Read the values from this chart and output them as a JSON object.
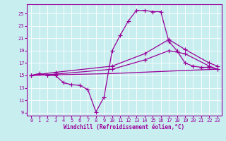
{
  "background_color": "#c8eef0",
  "line_color": "#990099",
  "xlabel": "Windchill (Refroidissement éolien,°C)",
  "xlim": [
    -0.5,
    23.5
  ],
  "ylim": [
    8.5,
    26.5
  ],
  "xticks": [
    0,
    1,
    2,
    3,
    4,
    5,
    6,
    7,
    8,
    9,
    10,
    11,
    12,
    13,
    14,
    15,
    16,
    17,
    18,
    19,
    20,
    21,
    22,
    23
  ],
  "yticks": [
    9,
    11,
    13,
    15,
    17,
    19,
    21,
    23,
    25
  ],
  "series1_x": [
    0,
    1,
    2,
    3,
    4,
    5,
    6,
    7,
    8,
    9,
    10,
    11,
    12,
    13,
    14,
    15,
    16,
    17,
    18,
    19,
    20,
    21,
    22,
    23
  ],
  "series1_y": [
    15.0,
    15.3,
    15.0,
    15.0,
    13.8,
    13.5,
    13.4,
    12.7,
    9.1,
    11.5,
    19.0,
    21.5,
    23.8,
    25.5,
    25.5,
    25.3,
    25.3,
    20.5,
    19.0,
    17.0,
    16.5,
    16.3,
    16.3,
    16.0
  ],
  "series2_x": [
    0,
    3,
    10,
    14,
    17,
    19,
    22,
    23
  ],
  "series2_y": [
    15.0,
    15.5,
    16.5,
    18.5,
    20.8,
    19.2,
    17.0,
    16.5
  ],
  "series3_x": [
    0,
    3,
    10,
    14,
    17,
    19,
    22,
    23
  ],
  "series3_y": [
    15.0,
    15.2,
    16.0,
    17.5,
    19.0,
    18.5,
    16.5,
    16.0
  ],
  "series4_x": [
    0,
    10,
    19,
    23
  ],
  "series4_y": [
    15.0,
    15.3,
    15.8,
    16.0
  ]
}
